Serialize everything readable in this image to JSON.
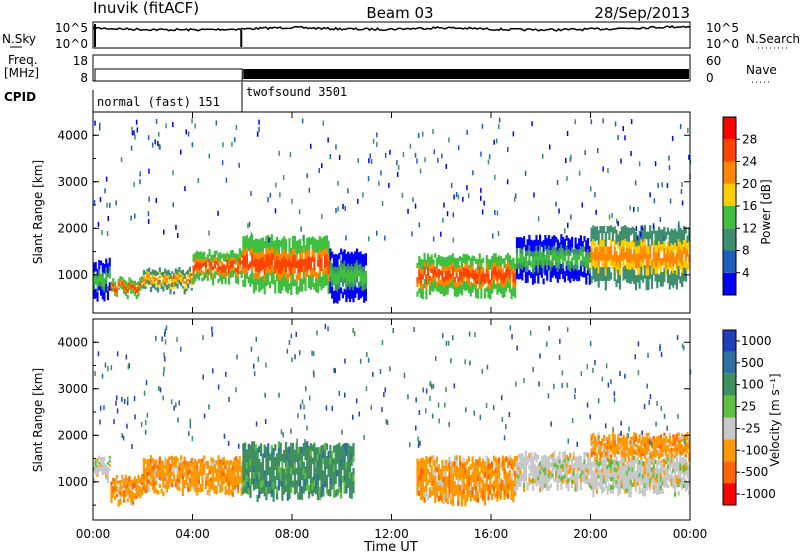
{
  "header": {
    "station": "Inuvik (fitACF)",
    "beam": "Beam 03",
    "date": "28/Sep/2013"
  },
  "panels": {
    "noise": {
      "left_label": "N.Sky",
      "right_label": "N.Search",
      "left_ticks": [
        "10^5",
        "10^0"
      ],
      "right_ticks": [
        "10^5",
        "10^0"
      ]
    },
    "freq": {
      "left_label_1": "Freq.",
      "left_label_2": "[MHz]",
      "left_ticks": [
        "18",
        "8"
      ],
      "right_ticks": [
        "60",
        "0"
      ],
      "right_label": "Nave"
    },
    "cpid": {
      "label": "CPID",
      "segments": [
        {
          "name": "normal (fast) 151",
          "start_hour": 0.0,
          "end_hour": 6.0
        },
        {
          "name": "twofsound 3501",
          "start_hour": 6.0,
          "end_hour": 24.0
        }
      ]
    },
    "power": {
      "ylabel": "Slant Range [km]",
      "colorbar_label": "Power [dB]",
      "colorbar_ticks": [
        "28",
        "24",
        "20",
        "16",
        "12",
        "8",
        "4"
      ],
      "colors": [
        "#0000ff",
        "#1f5fbf",
        "#3f8f6f",
        "#3fbf3f",
        "#ffcc00",
        "#ff8800",
        "#ff4400",
        "#ff0000"
      ]
    },
    "velocity": {
      "ylabel": "Slant Range [km]",
      "colorbar_label": "Velocity [m s⁻¹]",
      "colorbar_ticks": [
        "1000",
        "500",
        "100",
        "25",
        "-25",
        "-100",
        "-500",
        "-1000"
      ],
      "colors": [
        "#1f3fbf",
        "#2f6f9f",
        "#3f8f5f",
        "#5fbf3f",
        "#c8c8c8",
        "#ff9900",
        "#ff6600",
        "#ff0000"
      ]
    }
  },
  "axes": {
    "x_ticks": [
      "00:00",
      "04:00",
      "08:00",
      "12:00",
      "16:00",
      "20:00",
      "00:00"
    ],
    "x_label": "Time UT",
    "y_ticks": [
      "4000",
      "3000",
      "2000",
      "1000"
    ]
  },
  "chart_data": [
    {
      "type": "heatmap",
      "title": "Power",
      "xlabel": "Time UT",
      "ylabel": "Slant Range [km]",
      "xlim": [
        0,
        24
      ],
      "ylim": [
        180,
        4500
      ],
      "colorbar": {
        "label": "Power [dB]",
        "range": [
          0,
          32
        ]
      },
      "bands": [
        {
          "t": [
            0.0,
            0.7
          ],
          "range_km": [
            550,
            1300
          ],
          "value_db": 14
        },
        {
          "t": [
            0.7,
            2.0
          ],
          "range_km": [
            600,
            900
          ],
          "value_db": 24
        },
        {
          "t": [
            2.0,
            4.0
          ],
          "range_km": [
            700,
            1100
          ],
          "value_db": 22
        },
        {
          "t": [
            4.0,
            6.0
          ],
          "range_km": [
            900,
            1500
          ],
          "value_db": 26
        },
        {
          "t": [
            6.0,
            9.5
          ],
          "range_km": [
            700,
            1800
          ],
          "value_db": 26
        },
        {
          "t": [
            9.5,
            11.0
          ],
          "range_km": [
            500,
            1500
          ],
          "value_db": 14
        },
        {
          "t": [
            13.0,
            17.0
          ],
          "range_km": [
            600,
            1400
          ],
          "value_db": 26
        },
        {
          "t": [
            17.0,
            20.0
          ],
          "range_km": [
            900,
            1800
          ],
          "value_db": 12
        },
        {
          "t": [
            20.0,
            24.0
          ],
          "range_km": [
            800,
            2000
          ],
          "value_db": 22
        }
      ]
    },
    {
      "type": "heatmap",
      "title": "Velocity",
      "xlabel": "Time UT",
      "ylabel": "Slant Range [km]",
      "xlim": [
        0,
        24
      ],
      "ylim": [
        180,
        4500
      ],
      "colorbar": {
        "label": "Velocity [m s⁻¹]",
        "range": [
          -1000,
          1000
        ]
      },
      "bands": [
        {
          "t": [
            0.0,
            0.7
          ],
          "range_km": [
            1100,
            1500
          ],
          "value_ms": 0
        },
        {
          "t": [
            0.7,
            2.0
          ],
          "range_km": [
            600,
            1100
          ],
          "value_ms": -100
        },
        {
          "t": [
            2.0,
            6.0
          ],
          "range_km": [
            800,
            1500
          ],
          "value_ms": -100
        },
        {
          "t": [
            6.0,
            10.5
          ],
          "range_km": [
            700,
            1800
          ],
          "value_ms": 100
        },
        {
          "t": [
            13.0,
            17.0
          ],
          "range_km": [
            600,
            1500
          ],
          "value_ms": -100
        },
        {
          "t": [
            17.0,
            20.0
          ],
          "range_km": [
            900,
            1600
          ],
          "value_ms": 0
        },
        {
          "t": [
            20.0,
            24.0
          ],
          "range_km": [
            1500,
            2000
          ],
          "value_ms": -100
        },
        {
          "t": [
            20.0,
            24.0
          ],
          "range_km": [
            800,
            1500
          ],
          "value_ms": 0
        }
      ]
    }
  ]
}
